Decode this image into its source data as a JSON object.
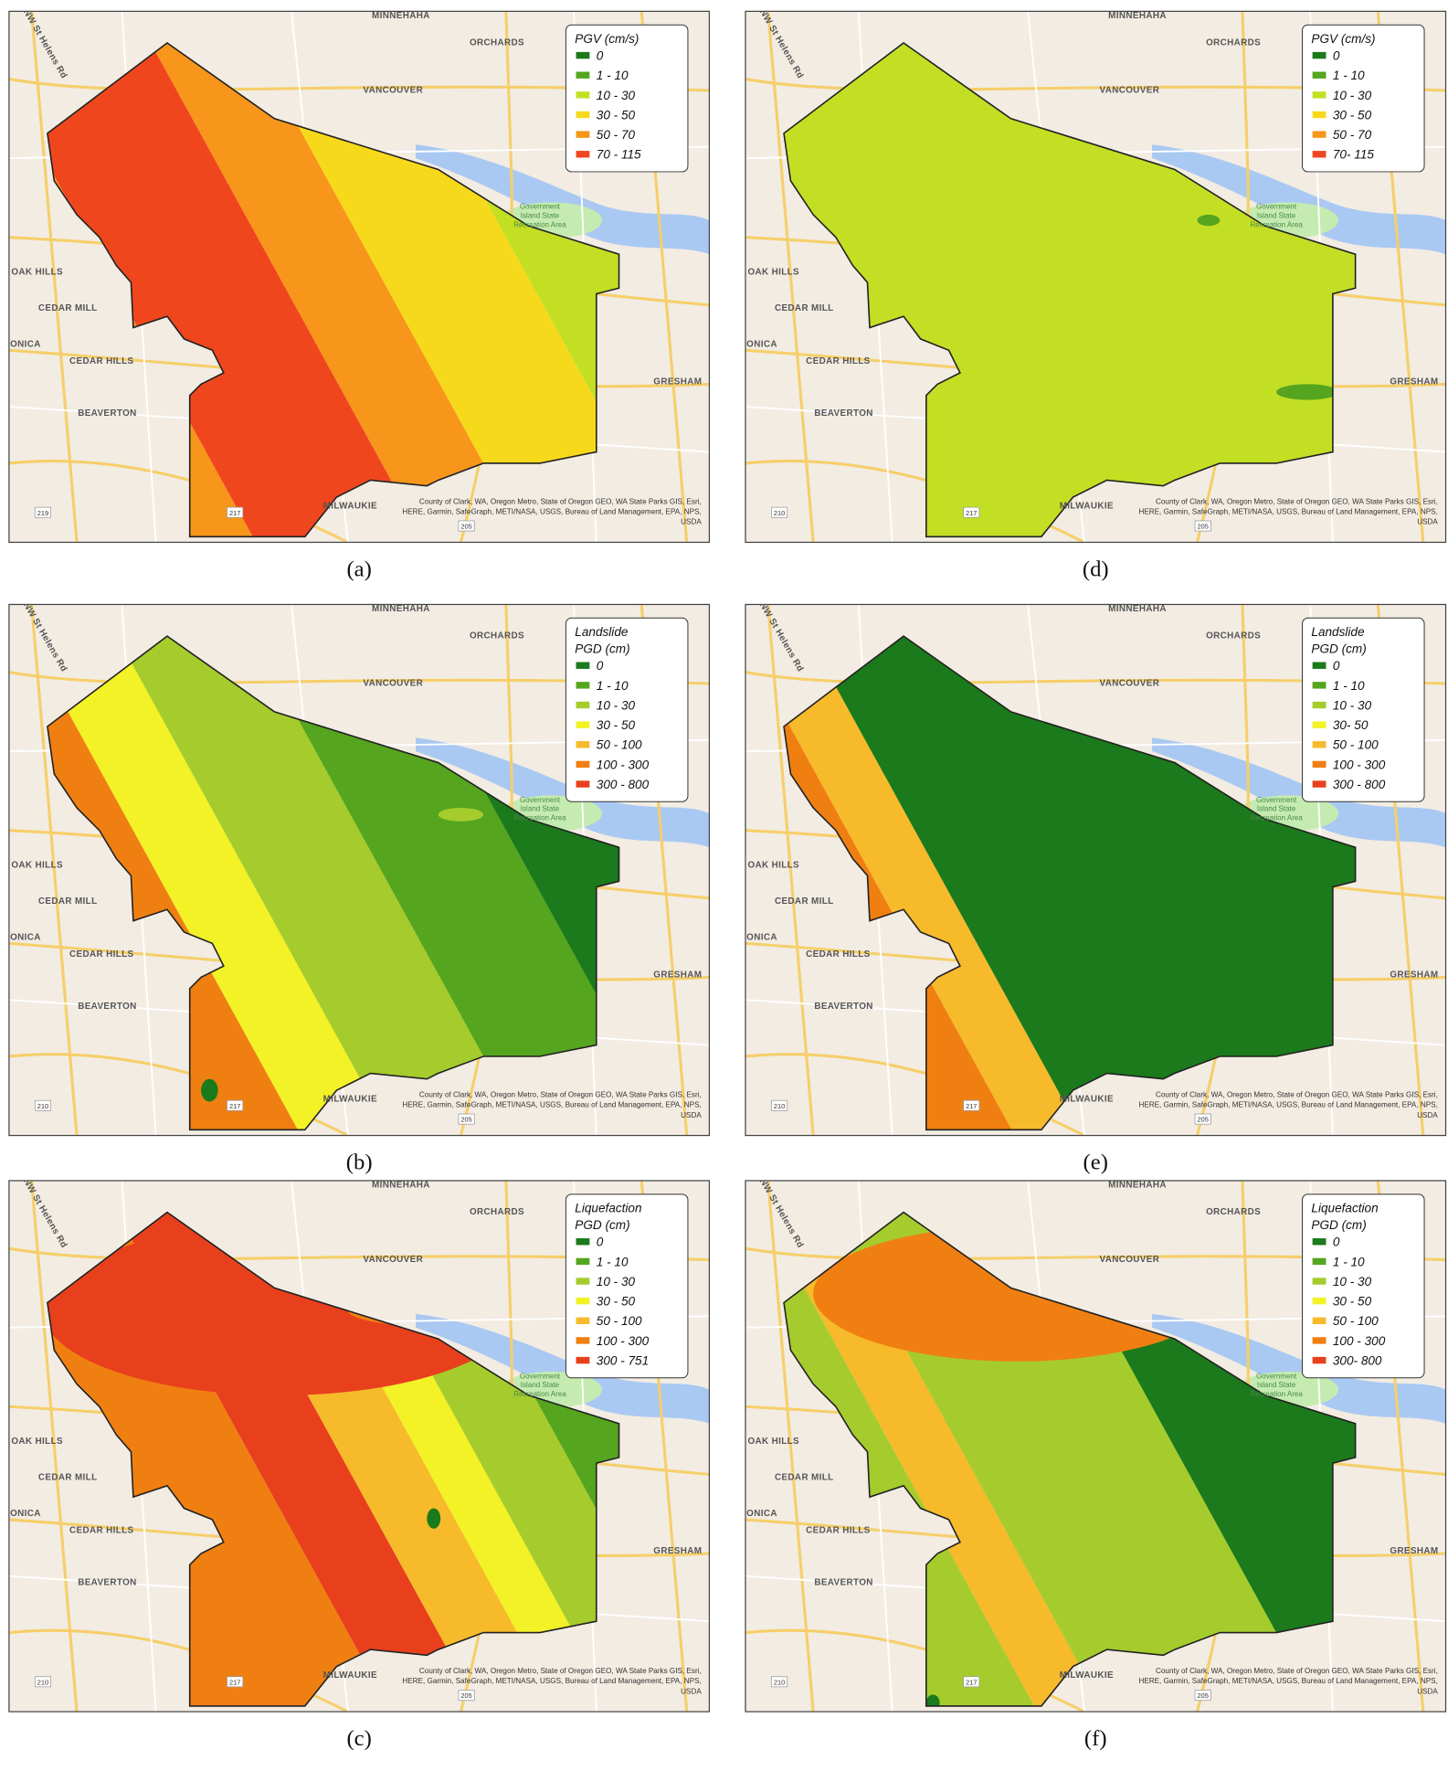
{
  "map_labels": [
    {
      "text": "MINNEHAHA"
    },
    {
      "text": "ORCHARDS"
    },
    {
      "text": "VANCOUVER"
    },
    {
      "text": "OAK HILLS"
    },
    {
      "text": "CEDAR MILL"
    },
    {
      "text": "CEDAR HILLS"
    },
    {
      "text": "MONICA"
    },
    {
      "text": "BEAVERTON"
    },
    {
      "text": "GRESHAM"
    },
    {
      "text": "MILWAUKIE"
    },
    {
      "text": "NW St Helens Rd"
    }
  ],
  "park_label": [
    "Government",
    "Island State",
    "Recreation Area"
  ],
  "attribution": [
    "County of Clark, WA, Oregon Metro, State of Oregon GEO, WA State Parks GIS, Esri,",
    "HERE, Garmin, SafeGraph, METI/NASA, USGS, Bureau of Land Management, EPA, NPS,",
    "USDA"
  ],
  "panels": [
    {
      "caption": "(a)",
      "legend_title": [
        "PGV (cm/s)"
      ],
      "shields": [
        "219",
        "217",
        "205"
      ],
      "legend": [
        {
          "label": "0",
          "color": "#1b7a1b"
        },
        {
          "label": "1 - 10",
          "color": "#55a51f"
        },
        {
          "label": "10 - 30",
          "color": "#c3df24"
        },
        {
          "label": "30 - 50",
          "color": "#f7d91b"
        },
        {
          "label": "50 - 70",
          "color": "#f7961a"
        },
        {
          "label": "70 - 115",
          "color": "#f0461e"
        }
      ]
    },
    {
      "caption": "(b)",
      "legend_title": [
        "Landslide",
        "PGD (cm)"
      ],
      "shields": [
        "210",
        "217",
        "205"
      ],
      "legend": [
        {
          "label": "0",
          "color": "#1b7a1b"
        },
        {
          "label": "1 - 10",
          "color": "#55a51f"
        },
        {
          "label": "10 - 30",
          "color": "#a5cc2c"
        },
        {
          "label": "30 - 50",
          "color": "#f2f226"
        },
        {
          "label": "50 - 100",
          "color": "#f6ba2b"
        },
        {
          "label": "100 - 300",
          "color": "#f07f12"
        },
        {
          "label": "300 - 800",
          "color": "#e8401c"
        }
      ]
    },
    {
      "caption": "(c)",
      "legend_title": [
        "Liquefaction",
        "PGD (cm)"
      ],
      "shields": [
        "210",
        "217",
        "205"
      ],
      "legend": [
        {
          "label": "0",
          "color": "#1b7a1b"
        },
        {
          "label": "1 - 10",
          "color": "#55a51f"
        },
        {
          "label": "10 - 30",
          "color": "#a5cc2c"
        },
        {
          "label": "30 - 50",
          "color": "#f2f226"
        },
        {
          "label": "50 - 100",
          "color": "#f6ba2b"
        },
        {
          "label": "100 - 300",
          "color": "#f07f12"
        },
        {
          "label": "300 - 751",
          "color": "#e8401c"
        }
      ]
    },
    {
      "caption": "(d)",
      "legend_title": [
        "PGV (cm/s)"
      ],
      "shields": [
        "210",
        "217",
        "205"
      ],
      "legend": [
        {
          "label": "0",
          "color": "#1b7a1b"
        },
        {
          "label": "1 - 10",
          "color": "#55a51f"
        },
        {
          "label": "10 - 30",
          "color": "#c3df24"
        },
        {
          "label": "30 - 50",
          "color": "#f7d91b"
        },
        {
          "label": "50 - 70",
          "color": "#f7961a"
        },
        {
          "label": "70- 115",
          "color": "#f0461e"
        }
      ]
    },
    {
      "caption": "(e)",
      "legend_title": [
        "Landslide",
        "PGD (cm)"
      ],
      "shields": [
        "210",
        "217",
        "205"
      ],
      "legend": [
        {
          "label": "0",
          "color": "#1b7a1b"
        },
        {
          "label": "1 - 10",
          "color": "#55a51f"
        },
        {
          "label": "10 - 30",
          "color": "#a5cc2c"
        },
        {
          "label": "30- 50",
          "color": "#f2f226"
        },
        {
          "label": "50 - 100",
          "color": "#f6ba2b"
        },
        {
          "label": "100 - 300",
          "color": "#f07f12"
        },
        {
          "label": "300 - 800",
          "color": "#e8401c"
        }
      ]
    },
    {
      "caption": "(f)",
      "legend_title": [
        "Liquefaction",
        "PGD (cm)"
      ],
      "shields": [
        "210",
        "217",
        "205"
      ],
      "legend": [
        {
          "label": "0",
          "color": "#1b7a1b"
        },
        {
          "label": "1 - 10",
          "color": "#55a51f"
        },
        {
          "label": "10 - 30",
          "color": "#a5cc2c"
        },
        {
          "label": "30 - 50",
          "color": "#f2f226"
        },
        {
          "label": "50 - 100",
          "color": "#f6ba2b"
        },
        {
          "label": "100 - 300",
          "color": "#f07f12"
        },
        {
          "label": "300- 800",
          "color": "#e8401c"
        }
      ]
    }
  ]
}
